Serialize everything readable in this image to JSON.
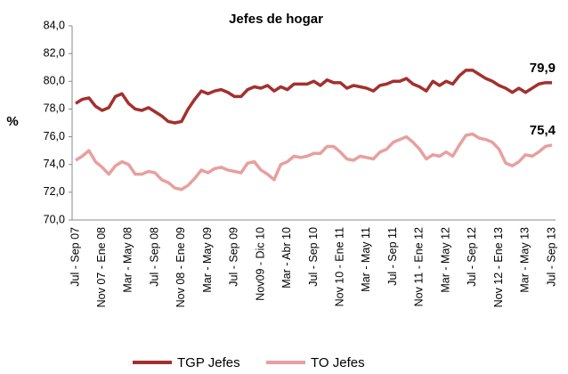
{
  "chart_data": {
    "type": "line",
    "title": "Jefes de hogar",
    "y_label": "%",
    "categories": [
      "Jul - Sep 07",
      null,
      null,
      null,
      "Nov 07 - Ene 08",
      null,
      null,
      null,
      "Mar - May 08",
      null,
      null,
      null,
      "Jul - Sep 08",
      null,
      null,
      null,
      "Nov 08 - Ene 09",
      null,
      null,
      null,
      "Mar - May 09",
      null,
      null,
      null,
      "Jul - Sep 09",
      null,
      null,
      null,
      "Nov09 - Dic 10",
      null,
      null,
      null,
      "Mar - Abr 10",
      null,
      null,
      null,
      "Jul - Sep 10",
      null,
      null,
      null,
      "Nov 10 - Ene 11",
      null,
      null,
      null,
      "Mar - May 11",
      null,
      null,
      null,
      "Jul - Sep 11",
      null,
      null,
      null,
      "Nov 11 - Ene 12",
      null,
      null,
      null,
      "Mar - May 12",
      null,
      null,
      null,
      "Jul - Sep 12",
      null,
      null,
      null,
      "Nov 12 - Ene 13",
      null,
      null,
      null,
      "Mar - May 13",
      null,
      null,
      null,
      "Jul - Sep 13"
    ],
    "series": [
      {
        "name": "TGP Jefes",
        "color": "#a3302e",
        "values": [
          78.4,
          78.7,
          78.8,
          78.2,
          77.9,
          78.1,
          78.9,
          79.1,
          78.4,
          78.0,
          77.9,
          78.1,
          77.8,
          77.5,
          77.1,
          77.0,
          77.1,
          78.0,
          78.7,
          79.3,
          79.1,
          79.3,
          79.4,
          79.2,
          78.9,
          78.9,
          79.4,
          79.6,
          79.5,
          79.7,
          79.3,
          79.6,
          79.4,
          79.8,
          79.8,
          79.8,
          80.0,
          79.7,
          80.1,
          79.9,
          79.9,
          79.5,
          79.7,
          79.6,
          79.5,
          79.3,
          79.7,
          79.8,
          80.0,
          80.0,
          80.2,
          79.8,
          79.6,
          79.3,
          80.0,
          79.7,
          80.0,
          79.8,
          80.4,
          80.8,
          80.8,
          80.5,
          80.2,
          80.0,
          79.7,
          79.5,
          79.2,
          79.5,
          79.2,
          79.5,
          79.8,
          79.9,
          79.9
        ],
        "value_labels": [
          null,
          null,
          null,
          null,
          null,
          null,
          null,
          null,
          null,
          null,
          null,
          null,
          null,
          null,
          null,
          null,
          null,
          null,
          null,
          null,
          null,
          null,
          null,
          null,
          null,
          null,
          null,
          null,
          null,
          null,
          null,
          null,
          null,
          null,
          null,
          null,
          null,
          null,
          null,
          null,
          null,
          null,
          null,
          null,
          null,
          null,
          null,
          null,
          null,
          null,
          null,
          null,
          null,
          null,
          null,
          null,
          null,
          null,
          null,
          null,
          null,
          null,
          null,
          null,
          null,
          null,
          null,
          null,
          null,
          null,
          null,
          null,
          "79,9"
        ]
      },
      {
        "name": "TO Jefes",
        "color": "#e7a09f",
        "values": [
          74.3,
          74.6,
          75.0,
          74.2,
          73.8,
          73.3,
          73.9,
          74.2,
          74.0,
          73.3,
          73.3,
          73.5,
          73.4,
          72.9,
          72.7,
          72.3,
          72.2,
          72.5,
          73.0,
          73.6,
          73.4,
          73.7,
          73.8,
          73.6,
          73.5,
          73.4,
          74.1,
          74.2,
          73.6,
          73.3,
          72.9,
          74.0,
          74.2,
          74.6,
          74.5,
          74.6,
          74.8,
          74.8,
          75.3,
          75.3,
          74.9,
          74.4,
          74.3,
          74.6,
          74.5,
          74.4,
          74.9,
          75.1,
          75.6,
          75.8,
          76.0,
          75.6,
          75.1,
          74.4,
          74.7,
          74.6,
          74.9,
          74.6,
          75.4,
          76.1,
          76.2,
          75.9,
          75.8,
          75.6,
          75.1,
          74.1,
          73.9,
          74.2,
          74.7,
          74.6,
          74.9,
          75.3,
          75.4
        ],
        "value_labels": [
          null,
          null,
          null,
          null,
          null,
          null,
          null,
          null,
          null,
          null,
          null,
          null,
          null,
          null,
          null,
          null,
          null,
          null,
          null,
          null,
          null,
          null,
          null,
          null,
          null,
          null,
          null,
          null,
          null,
          null,
          null,
          null,
          null,
          null,
          null,
          null,
          null,
          null,
          null,
          null,
          null,
          null,
          null,
          null,
          null,
          null,
          null,
          null,
          null,
          null,
          null,
          null,
          null,
          null,
          null,
          null,
          null,
          null,
          null,
          null,
          null,
          null,
          null,
          null,
          null,
          null,
          null,
          null,
          null,
          null,
          null,
          null,
          "75,4"
        ]
      }
    ],
    "ylim": [
      70,
      84
    ],
    "yticks": [
      {
        "value": 70,
        "label": "70,0"
      },
      {
        "value": 72,
        "label": "72,0"
      },
      {
        "value": 74,
        "label": "74,0"
      },
      {
        "value": 76,
        "label": "76,0"
      },
      {
        "value": 78,
        "label": "78,0"
      },
      {
        "value": 80,
        "label": "80,0"
      },
      {
        "value": 82,
        "label": "82,0"
      },
      {
        "value": 84,
        "label": "84,0"
      }
    ],
    "grid": false,
    "legend": "bottom"
  }
}
